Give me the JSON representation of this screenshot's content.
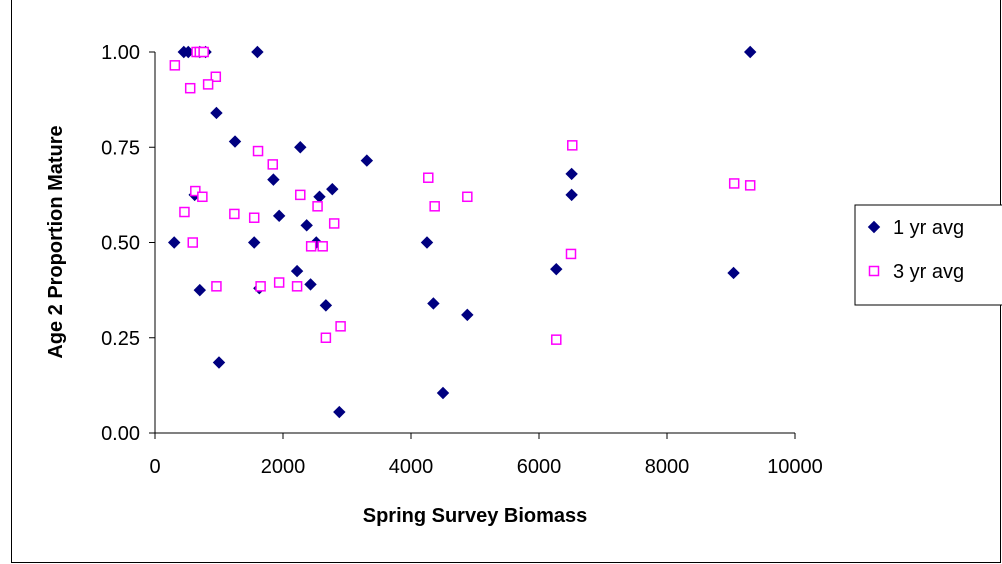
{
  "chart_data": {
    "type": "scatter",
    "xlabel": "Spring Survey Biomass",
    "ylabel": "Age 2 Proportion Mature",
    "xlim": [
      0,
      10000
    ],
    "ylim": [
      0,
      1
    ],
    "x_ticks": [
      "0",
      "2000",
      "4000",
      "6000",
      "8000",
      "10000"
    ],
    "y_ticks": [
      "0.00",
      "0.25",
      "0.50",
      "0.75",
      "1.00"
    ],
    "grid": false,
    "legend_position": "right",
    "series": [
      {
        "name": "1 yr avg",
        "marker": "diamond",
        "color": "#000080",
        "points": [
          [
            450,
            1.0
          ],
          [
            520,
            1.0
          ],
          [
            700,
            1.0
          ],
          [
            790,
            1.0
          ],
          [
            1600,
            1.0
          ],
          [
            9300,
            1.0
          ],
          [
            960,
            0.84
          ],
          [
            1250,
            0.765
          ],
          [
            2270,
            0.75
          ],
          [
            3310,
            0.715
          ],
          [
            1850,
            0.665
          ],
          [
            2770,
            0.64
          ],
          [
            620,
            0.625
          ],
          [
            2570,
            0.62
          ],
          [
            6510,
            0.68
          ],
          [
            6510,
            0.625
          ],
          [
            1940,
            0.57
          ],
          [
            2370,
            0.545
          ],
          [
            300,
            0.5
          ],
          [
            1550,
            0.5
          ],
          [
            2520,
            0.5
          ],
          [
            4250,
            0.5
          ],
          [
            6270,
            0.43
          ],
          [
            9040,
            0.42
          ],
          [
            2220,
            0.425
          ],
          [
            2430,
            0.39
          ],
          [
            700,
            0.375
          ],
          [
            1630,
            0.38
          ],
          [
            2670,
            0.335
          ],
          [
            4350,
            0.34
          ],
          [
            4880,
            0.31
          ],
          [
            1000,
            0.185
          ],
          [
            4500,
            0.105
          ],
          [
            2880,
            0.055
          ]
        ]
      },
      {
        "name": "3 yr avg",
        "marker": "square",
        "color": "#ff00ff",
        "points": [
          [
            650,
            1.0
          ],
          [
            700,
            1.0
          ],
          [
            760,
            1.0
          ],
          [
            310,
            0.965
          ],
          [
            950,
            0.935
          ],
          [
            830,
            0.915
          ],
          [
            550,
            0.905
          ],
          [
            1610,
            0.74
          ],
          [
            1840,
            0.705
          ],
          [
            4270,
            0.67
          ],
          [
            6520,
            0.755
          ],
          [
            9050,
            0.655
          ],
          [
            9300,
            0.65
          ],
          [
            630,
            0.635
          ],
          [
            740,
            0.62
          ],
          [
            2270,
            0.625
          ],
          [
            4880,
            0.62
          ],
          [
            4370,
            0.595
          ],
          [
            2540,
            0.595
          ],
          [
            460,
            0.58
          ],
          [
            1240,
            0.575
          ],
          [
            1550,
            0.565
          ],
          [
            2800,
            0.55
          ],
          [
            590,
            0.5
          ],
          [
            2440,
            0.49
          ],
          [
            2620,
            0.49
          ],
          [
            6500,
            0.47
          ],
          [
            960,
            0.385
          ],
          [
            1650,
            0.385
          ],
          [
            1940,
            0.395
          ],
          [
            2220,
            0.385
          ],
          [
            2900,
            0.28
          ],
          [
            2670,
            0.25
          ],
          [
            6270,
            0.245
          ]
        ]
      }
    ]
  }
}
